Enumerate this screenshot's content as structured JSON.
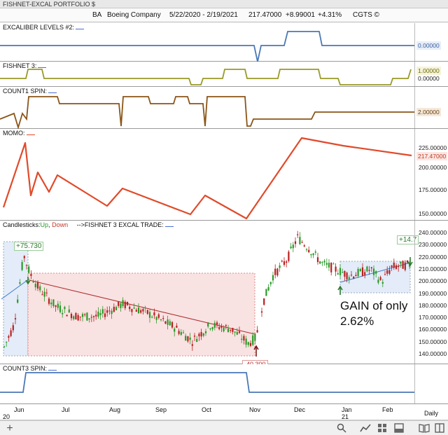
{
  "window": {
    "title": "FISHNET-EXCAL PORTFOLIO $"
  },
  "header": {
    "symbol": "BA",
    "company": "Boeing Company",
    "date_range": "5/22/2020 - 2/19/2021",
    "last_price": "217.47000",
    "change": "+8.99001",
    "change_pct": "+4.31%",
    "tag": "CGTS ©"
  },
  "panes": {
    "excaliber": {
      "label": "EXCALIBER LEVELS #2:",
      "value": "0.00000",
      "color": "#4a78b5"
    },
    "fishnet": {
      "label": "FISHNET 3:",
      "value": "1.00000",
      "value2": "0.00000",
      "color": "#9a9a28"
    },
    "count1": {
      "label": "COUNT1 SPIN:",
      "value": "2.00000",
      "color": "#8a5518"
    },
    "momo": {
      "label": "MOMO:",
      "value": "217.47000",
      "color": "#e04a2a",
      "axis": [
        "225.00000",
        "200.00000",
        "175.00000",
        "150.00000"
      ]
    },
    "candles": {
      "label_prefix": "Candlesticks:",
      "label_up": "Up",
      "label_sep": ",",
      "label_down": "Down",
      "label_suffix": "-->FISHNET 3 EXCAL TRADE:",
      "axis": [
        "240.00000",
        "230.00000",
        "220.00000",
        "210.00000",
        "200.00000",
        "190.00000",
        "180.00000",
        "170.00000",
        "160.00000",
        "150.00000",
        "140.00000"
      ],
      "annotations": {
        "first_gain": "+75.730",
        "second_gain": "+14.7",
        "cut_value": "-40.300",
        "gain_text_line1": "GAIN of only",
        "gain_text_line2": "2.62%"
      }
    },
    "count3": {
      "label": "COUNT3 SPIN:",
      "color": "#4a78b5"
    }
  },
  "date_axis": {
    "labels": [
      "20",
      "Jun",
      "Jul",
      "Aug",
      "Sep",
      "Oct",
      "Nov",
      "Dec",
      "Jan",
      "Feb"
    ],
    "year_label": "21",
    "interval": "Daily"
  },
  "icons": [
    "plus-icon",
    "search-icon",
    "line-chart-icon",
    "grid-icon",
    "layout-icon",
    "panel-icon",
    "book-icon",
    "columns-icon"
  ]
}
